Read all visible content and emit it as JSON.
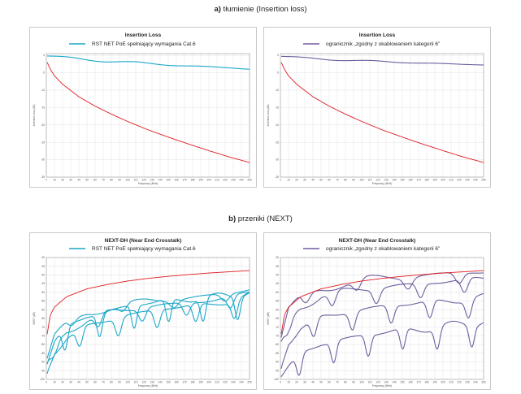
{
  "headings": {
    "a_prefix": "a)",
    "a_text": " tłumienie (Insertion loss)",
    "b_prefix": "b)",
    "b_text": " przeniki (NEXT)"
  },
  "colors": {
    "teal": "#1aa7c9",
    "purple": "#6f5d9e",
    "red": "#e01b22",
    "grid": "#d9d9d9"
  },
  "chart_data": [
    {
      "id": "a1",
      "type": "line",
      "title": "Insertion Loss",
      "xlabel": "Frequency (MHz)",
      "ylabel": "Insertion Loss (dB)",
      "xlim": [
        0,
        250
      ],
      "ylim": [
        -35,
        0.5
      ],
      "x_ticks": [
        0,
        10,
        20,
        30,
        40,
        50,
        60,
        70,
        80,
        90,
        100,
        110,
        120,
        130,
        140,
        150,
        160,
        170,
        180,
        190,
        200,
        210,
        220,
        230,
        240,
        250
      ],
      "y_ticks": [
        0,
        -5,
        -10,
        -15,
        -20,
        -25,
        -30,
        -35
      ],
      "legend": "top-center",
      "series": [
        {
          "name": "RST NET PoE spełniający wymagania Cat.6",
          "color": "#1aa7c9",
          "x": [
            1,
            25,
            50,
            75,
            100,
            125,
            150,
            175,
            200,
            225,
            250
          ],
          "y": [
            -0.2,
            -0.7,
            -1.2,
            -1.6,
            -2.0,
            -2.4,
            -2.7,
            -3.0,
            -3.3,
            -3.6,
            -3.9
          ]
        },
        {
          "name": "",
          "color": "#e01b22",
          "x": [
            1,
            5,
            10,
            20,
            40,
            60,
            80,
            100,
            125,
            150,
            175,
            200,
            225,
            250
          ],
          "y": [
            -2.0,
            -4.0,
            -5.9,
            -8.3,
            -11.9,
            -14.6,
            -16.9,
            -19.0,
            -21.4,
            -23.5,
            -25.5,
            -27.4,
            -29.2,
            -30.8
          ]
        }
      ]
    },
    {
      "id": "a2",
      "type": "line",
      "title": "Insertion Loss",
      "xlabel": "Frequency (MHz)",
      "ylabel": "Insertion Loss (dB)",
      "xlim": [
        0,
        250
      ],
      "ylim": [
        -35,
        0.5
      ],
      "x_ticks": [
        0,
        10,
        20,
        30,
        40,
        50,
        60,
        70,
        80,
        90,
        100,
        110,
        120,
        130,
        140,
        150,
        160,
        170,
        180,
        190,
        200,
        210,
        220,
        230,
        240,
        250
      ],
      "y_ticks": [
        0,
        -5,
        -10,
        -15,
        -20,
        -25,
        -30,
        -35
      ],
      "legend": "top-center",
      "series": [
        {
          "name": "ogranicznik „zgodny z okablowaniem kategorii 6”",
          "color": "#6f5d9e",
          "x": [
            1,
            25,
            50,
            75,
            100,
            125,
            150,
            175,
            200,
            225,
            250
          ],
          "y": [
            -0.3,
            -0.7,
            -1.0,
            -1.3,
            -1.6,
            -1.8,
            -2.0,
            -2.2,
            -2.4,
            -2.6,
            -2.7
          ]
        },
        {
          "name": "",
          "color": "#e01b22",
          "x": [
            1,
            5,
            10,
            20,
            40,
            60,
            80,
            100,
            125,
            150,
            175,
            200,
            225,
            250
          ],
          "y": [
            -2.0,
            -4.0,
            -5.9,
            -8.3,
            -11.9,
            -14.6,
            -16.9,
            -19.0,
            -21.4,
            -23.5,
            -25.5,
            -27.4,
            -29.2,
            -30.8
          ]
        }
      ]
    },
    {
      "id": "b1",
      "type": "line",
      "title": "NEXT-DH (Near End Crosstalk)",
      "xlabel": "Frequency (MHz)",
      "ylabel": "NEXT (dB)",
      "xlim": [
        0,
        250
      ],
      "ylim": [
        -100,
        -30
      ],
      "x_ticks": [
        0,
        10,
        20,
        30,
        40,
        50,
        60,
        70,
        80,
        90,
        100,
        110,
        120,
        130,
        140,
        150,
        160,
        170,
        180,
        190,
        200,
        210,
        220,
        230,
        240,
        250
      ],
      "y_ticks": [
        -30,
        -35,
        -40,
        -45,
        -50,
        -55,
        -60,
        -65,
        -70,
        -75,
        -80,
        -85,
        -90,
        -95,
        -100
      ],
      "legend": "top-center",
      "series": [
        {
          "name": "RST NET PoE spełniający wymagania Cat.6",
          "color": "#1aa7c9",
          "x": [
            1,
            10,
            25,
            50,
            75,
            100,
            125,
            150,
            175,
            200,
            225,
            250
          ],
          "y": [
            -88,
            -75,
            -68,
            -62,
            -59,
            -57,
            -55,
            -54,
            -53,
            -52,
            -51,
            -48
          ]
        },
        {
          "name": "",
          "color": "#1aa7c9",
          "x": [
            1,
            10,
            25,
            50,
            75,
            100,
            125,
            150,
            175,
            200,
            225,
            250
          ],
          "y": [
            -92,
            -80,
            -72,
            -66,
            -62,
            -60,
            -58,
            -57,
            -56,
            -55,
            -53,
            -50
          ]
        },
        {
          "name": "",
          "color": "#1aa7c9",
          "x": [
            1,
            10,
            25,
            50,
            75,
            100,
            125,
            150,
            175,
            200,
            225,
            250
          ],
          "y": [
            -95,
            -84,
            -76,
            -70,
            -66,
            -63,
            -61,
            -59,
            -58,
            -57,
            -55,
            -52
          ]
        },
        {
          "name": "",
          "color": "#1aa7c9",
          "x": [
            1,
            10,
            25,
            50,
            75,
            100,
            125,
            150,
            175,
            200,
            225,
            250
          ],
          "y": [
            -90,
            -78,
            -70,
            -64,
            -61,
            -58,
            -56,
            -55,
            -54,
            -53,
            -52,
            -49
          ]
        },
        {
          "name": "",
          "color": "#e01b22",
          "x": [
            1,
            5,
            10,
            25,
            50,
            75,
            100,
            125,
            150,
            175,
            200,
            225,
            250
          ],
          "y": [
            -74,
            -63,
            -58.5,
            -52.5,
            -48,
            -45.5,
            -43.5,
            -42,
            -40.8,
            -39.8,
            -38.9,
            -38.2,
            -37.5
          ]
        }
      ]
    },
    {
      "id": "b2",
      "type": "line",
      "title": "NEXT-DH (Near End Crosstalk)",
      "xlabel": "Frequency (MHz)",
      "ylabel": "NEXT (dB)",
      "xlim": [
        0,
        250
      ],
      "ylim": [
        -100,
        -30
      ],
      "x_ticks": [
        0,
        10,
        20,
        30,
        40,
        50,
        60,
        70,
        80,
        90,
        100,
        110,
        120,
        130,
        140,
        150,
        160,
        170,
        180,
        190,
        200,
        210,
        220,
        230,
        240,
        250
      ],
      "y_ticks": [
        -30,
        -35,
        -40,
        -45,
        -50,
        -55,
        -60,
        -65,
        -70,
        -75,
        -80,
        -85,
        -90,
        -95,
        -100
      ],
      "legend": "top-center",
      "series": [
        {
          "name": "ogranicznik „zgodny z okablowaniem kategorii 6”",
          "color": "#6f5d9e",
          "x": [
            1,
            10,
            25,
            50,
            75,
            100,
            125,
            150,
            175,
            200,
            225,
            250
          ],
          "y": [
            -76,
            -60,
            -53,
            -48,
            -45,
            -43,
            -42,
            -41,
            -40,
            -39.5,
            -38.8,
            -38.2
          ]
        },
        {
          "name": "",
          "color": "#6f5d9e",
          "x": [
            1,
            10,
            25,
            50,
            75,
            100,
            125,
            150,
            175,
            200,
            225,
            250
          ],
          "y": [
            -80,
            -66,
            -58,
            -52,
            -50,
            -48,
            -47,
            -46,
            -45,
            -44,
            -43,
            -42
          ]
        },
        {
          "name": "",
          "color": "#6f5d9e",
          "x": [
            1,
            10,
            25,
            50,
            75,
            100,
            125,
            150,
            175,
            200,
            225,
            250
          ],
          "y": [
            -92,
            -78,
            -70,
            -65,
            -62,
            -60,
            -58,
            -57,
            -56,
            -55,
            -54,
            -53
          ]
        },
        {
          "name": "",
          "color": "#6f5d9e",
          "x": [
            1,
            10,
            25,
            50,
            75,
            100,
            125,
            150,
            175,
            200,
            225,
            250
          ],
          "y": [
            -97,
            -92,
            -86,
            -80,
            -77,
            -75,
            -73,
            -72,
            -71,
            -70,
            -68,
            -66
          ]
        },
        {
          "name": "",
          "color": "#e01b22",
          "x": [
            1,
            5,
            10,
            25,
            50,
            75,
            100,
            125,
            150,
            175,
            200,
            225,
            250
          ],
          "y": [
            -74,
            -63,
            -58.5,
            -52.5,
            -48,
            -45.5,
            -43.5,
            -42,
            -40.8,
            -39.8,
            -38.9,
            -38.2,
            -37.5
          ]
        }
      ]
    }
  ]
}
